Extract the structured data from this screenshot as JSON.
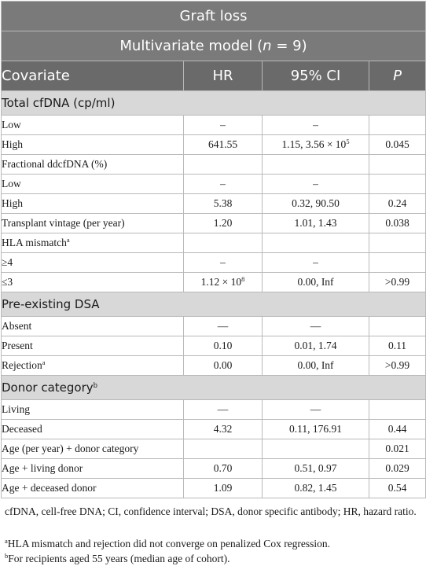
{
  "caption": "Graft loss",
  "model": {
    "prefix": "Multivariate model (",
    "n_italic": "n",
    "suffix": " = 9)"
  },
  "columns": {
    "covariate": "Covariate",
    "hr": "HR",
    "ci": "95% CI",
    "p": "P"
  },
  "rows": {
    "r1": {
      "label": "Low",
      "hr": "–",
      "ci": "–",
      "p": ""
    },
    "r2": {
      "label": "High",
      "hr": "641.55",
      "ci_base": "1.15, 3.56 × 10",
      "ci_exp": "5",
      "p": "0.045"
    },
    "r3": {
      "label": "Fractional ddcfDNA (%)"
    },
    "r4": {
      "label": "Low",
      "hr": "–",
      "ci": "–",
      "p": ""
    },
    "r5": {
      "label": "High",
      "hr": "5.38",
      "ci": "0.32, 90.50",
      "p": "0.24"
    },
    "r6": {
      "label": "Transplant vintage (per year)",
      "hr": "1.20",
      "ci": "1.01, 1.43",
      "p": "0.038"
    },
    "r7": {
      "label": "HLA mismatch",
      "sup": "a"
    },
    "r8": {
      "label": "≥4",
      "hr": "–",
      "ci": "–",
      "p": ""
    },
    "r9": {
      "label": "≤3",
      "hr_base": "1.12 × 10",
      "hr_exp": "8",
      "ci": "0.00, Inf",
      "p": ">0.99"
    },
    "r10": {
      "label": "Absent",
      "hr": "—",
      "ci": "—",
      "p": ""
    },
    "r11": {
      "label": "Present",
      "hr": "0.10",
      "ci": "0.01, 1.74",
      "p": "0.11"
    },
    "r12": {
      "label": "Rejection",
      "sup": "a",
      "hr": "0.00",
      "ci": "0.00, Inf",
      "p": ">0.99"
    },
    "r13": {
      "label": "Living",
      "hr": "—",
      "ci": "—",
      "p": ""
    },
    "r14": {
      "label": "Deceased",
      "hr": "4.32",
      "ci": "0.11, 176.91",
      "p": "0.44"
    },
    "r15": {
      "label": "Age (per year) + donor category",
      "hr": "",
      "ci": "",
      "p": "0.021"
    },
    "r16": {
      "label": "Age + living donor",
      "hr": "0.70",
      "ci": "0.51, 0.97",
      "p": "0.029"
    },
    "r17": {
      "label": "Age + deceased donor",
      "hr": "1.09",
      "ci": "0.82, 1.45",
      "p": "0.54"
    }
  },
  "sections": {
    "s1": {
      "label": "Total cfDNA (cp/ml)"
    },
    "s2": {
      "label": "Pre-existing DSA"
    },
    "s3": {
      "label": "Donor category",
      "sup": "b"
    }
  },
  "footnotes": {
    "abbrev": "cfDNA, cell-free DNA; CI, confidence interval; DSA, donor specific antibody; HR, hazard ratio.",
    "a_mark": "a",
    "a_text": "HLA mismatch and rejection did not converge on penalized Cox regression.",
    "b_mark": "b",
    "b_text": "For recipients aged 55 years (median age of cohort)."
  }
}
